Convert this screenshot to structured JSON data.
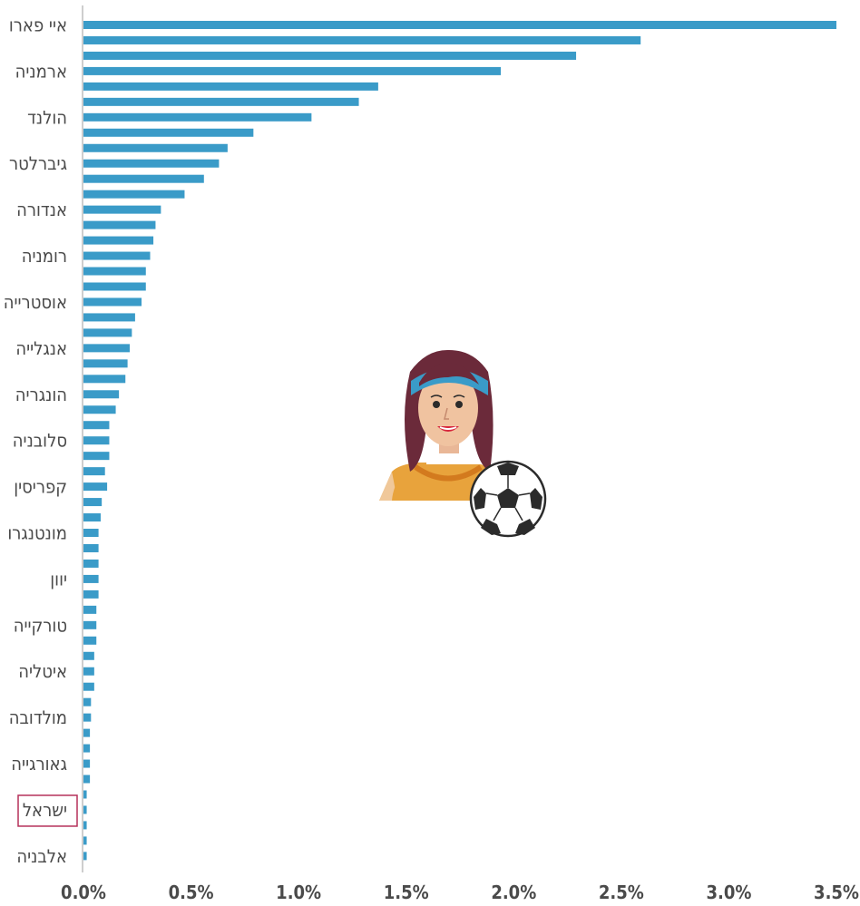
{
  "chart_data": {
    "type": "bar",
    "orientation": "horizontal",
    "categories": [
      "איי פארו",
      "",
      "",
      "ארמניה",
      "",
      "",
      "הולנד",
      "",
      "",
      "גיברלטר",
      "",
      "",
      "אנדורה",
      "",
      "",
      "רומניה",
      "",
      "",
      "אוסטרייה",
      "",
      "",
      "אנגלייה",
      "",
      "",
      "הונגריה",
      "",
      "",
      "סלובניה",
      "",
      "",
      "קפריסין",
      "",
      "",
      "מונטנגרו",
      "",
      "",
      "יוון",
      "",
      "",
      "טורקייה",
      "",
      "",
      "איטליה",
      "",
      "",
      "מולדובה",
      "",
      "",
      "גאורגייה",
      "",
      "",
      "ישראל",
      "",
      "",
      "אלבניה"
    ],
    "values": [
      3.5,
      2.59,
      2.29,
      1.94,
      1.37,
      1.28,
      1.06,
      0.79,
      0.67,
      0.63,
      0.56,
      0.47,
      0.36,
      0.335,
      0.325,
      0.31,
      0.29,
      0.29,
      0.27,
      0.24,
      0.225,
      0.215,
      0.205,
      0.195,
      0.165,
      0.15,
      0.12,
      0.12,
      0.12,
      0.1,
      0.11,
      0.085,
      0.08,
      0.07,
      0.07,
      0.07,
      0.07,
      0.07,
      0.06,
      0.06,
      0.06,
      0.05,
      0.05,
      0.05,
      0.035,
      0.035,
      0.03,
      0.03,
      0.03,
      0.03,
      0.015,
      0.015,
      0.015,
      0.015,
      0.015
    ],
    "highlight": "ישראל",
    "xticks": [
      "0.0%",
      "0.5%",
      "1.0%",
      "1.5%",
      "2.0%",
      "2.5%",
      "3.0%",
      "3.5%"
    ],
    "xlim": [
      0,
      3.5
    ],
    "bar_color": "#3a9bc8",
    "highlight_color": "#b5305a",
    "grid": false
  },
  "illustration": {
    "person_icon": "woman-footballer-icon",
    "ball_icon": "soccer-ball-icon"
  }
}
